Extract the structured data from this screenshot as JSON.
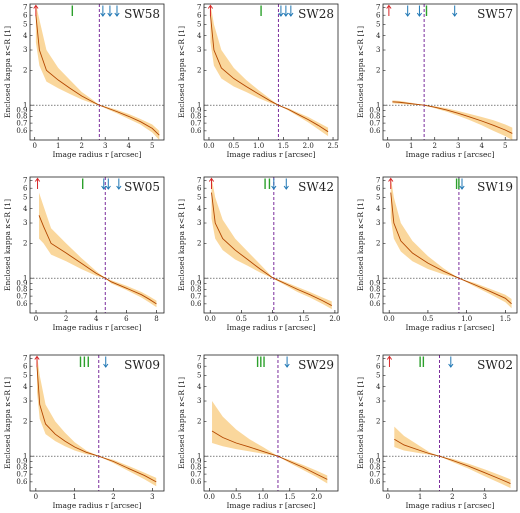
{
  "chart_data": [
    {
      "type": "line",
      "title": "SW58",
      "xlabel": "Image radius r [arcsec]",
      "ylabel": "Enclosed kappa κ<R [1]",
      "xlim": [
        -0.2,
        5.5
      ],
      "ylim": [
        0.5,
        7.5
      ],
      "yscale": "log",
      "xticks": [
        0,
        1,
        2,
        3,
        4,
        5
      ],
      "yticks": [
        0.6,
        0.7,
        0.8,
        0.9,
        1,
        2,
        3,
        4,
        5,
        6,
        7
      ],
      "ytick_labels": [
        "0.6",
        "0.7",
        "0.8",
        "0.9",
        "1",
        "2",
        "3",
        "4",
        "5",
        "6",
        "7"
      ],
      "reference_y": 1,
      "vline_x": 2.75,
      "markers": [
        {
          "x": 0.05,
          "color": "red"
        },
        {
          "x": 1.6,
          "color": "green"
        },
        {
          "x": 2.9,
          "color": "blue"
        },
        {
          "x": 3.2,
          "color": "blue"
        },
        {
          "x": 3.5,
          "color": "blue"
        }
      ],
      "series": [
        {
          "x": [
            0.05,
            0.2,
            0.5,
            1.0,
            1.5,
            2.0,
            2.5,
            2.75,
            3.0,
            3.5,
            4.0,
            4.5,
            5.0,
            5.3
          ],
          "y": [
            6.0,
            3.0,
            2.0,
            1.65,
            1.4,
            1.2,
            1.06,
            1.0,
            0.96,
            0.88,
            0.8,
            0.72,
            0.63,
            0.55
          ],
          "lower": [
            3.5,
            2.2,
            1.6,
            1.4,
            1.25,
            1.12,
            1.03,
            1.0,
            0.94,
            0.85,
            0.76,
            0.68,
            0.58,
            0.5
          ],
          "upper": [
            7.5,
            5.5,
            3.0,
            2.1,
            1.65,
            1.3,
            1.1,
            1.0,
            0.98,
            0.91,
            0.84,
            0.76,
            0.68,
            0.6
          ]
        }
      ]
    },
    {
      "type": "line",
      "title": "SW28",
      "xlabel": "Image radius r [arcsec]",
      "ylabel": "Enclosed kappa κ<R [1]",
      "xlim": [
        -0.1,
        2.6
      ],
      "ylim": [
        0.5,
        7.5
      ],
      "yscale": "log",
      "xticks": [
        0.0,
        0.5,
        1.0,
        1.5,
        2.0,
        2.5
      ],
      "xtick_labels": [
        "0.0",
        "0.5",
        "1.0",
        "1.5",
        "2.0",
        "2.5"
      ],
      "yticks": [
        0.6,
        0.7,
        0.8,
        0.9,
        1,
        2,
        3,
        4,
        5,
        6,
        7
      ],
      "ytick_labels": [
        "0.6",
        "0.7",
        "0.8",
        "0.9",
        "1",
        "2",
        "3",
        "4",
        "5",
        "6",
        "7"
      ],
      "reference_y": 1,
      "vline_x": 1.4,
      "markers": [
        {
          "x": 0.03,
          "color": "red"
        },
        {
          "x": 1.05,
          "color": "green"
        },
        {
          "x": 1.45,
          "color": "blue"
        },
        {
          "x": 1.55,
          "color": "blue"
        },
        {
          "x": 1.65,
          "color": "blue"
        }
      ],
      "series": [
        {
          "x": [
            0.03,
            0.1,
            0.25,
            0.5,
            0.75,
            1.0,
            1.25,
            1.4,
            1.6,
            1.8,
            2.0,
            2.2,
            2.4
          ],
          "y": [
            6.0,
            3.0,
            2.1,
            1.7,
            1.45,
            1.25,
            1.08,
            1.0,
            0.92,
            0.83,
            0.75,
            0.67,
            0.59
          ],
          "lower": [
            3.5,
            2.2,
            1.7,
            1.45,
            1.3,
            1.15,
            1.04,
            1.0,
            0.9,
            0.8,
            0.71,
            0.62,
            0.54
          ],
          "upper": [
            7.5,
            5.0,
            3.0,
            2.1,
            1.65,
            1.35,
            1.12,
            1.0,
            0.94,
            0.86,
            0.79,
            0.71,
            0.64
          ]
        }
      ]
    },
    {
      "type": "line",
      "title": "SW57",
      "xlabel": "Image radius r [arcsec]",
      "ylabel": "Enclosed kappa κ<R [1]",
      "xlim": [
        -0.2,
        5.5
      ],
      "ylim": [
        0.5,
        7.5
      ],
      "yscale": "log",
      "xticks": [
        0,
        1,
        2,
        3,
        4,
        5
      ],
      "yticks": [
        0.6,
        0.7,
        0.8,
        0.9,
        1,
        2,
        3,
        4,
        5,
        6,
        7
      ],
      "ytick_labels": [
        "0.6",
        "0.7",
        "0.8",
        "0.9",
        "1",
        "2",
        "3",
        "4",
        "5",
        "6",
        "7"
      ],
      "reference_y": 1,
      "vline_x": 1.55,
      "markers": [
        {
          "x": 0.05,
          "color": "red"
        },
        {
          "x": 0.85,
          "color": "blue"
        },
        {
          "x": 1.35,
          "color": "blue"
        },
        {
          "x": 1.65,
          "color": "green"
        },
        {
          "x": 2.85,
          "color": "blue"
        }
      ],
      "series": [
        {
          "x": [
            0.2,
            0.5,
            1.0,
            1.55,
            2.0,
            2.5,
            3.0,
            3.5,
            4.0,
            4.5,
            5.0,
            5.3
          ],
          "y": [
            1.07,
            1.06,
            1.03,
            1.0,
            0.96,
            0.91,
            0.85,
            0.79,
            0.73,
            0.67,
            0.61,
            0.57
          ],
          "lower": [
            1.04,
            1.03,
            1.01,
            1.0,
            0.94,
            0.88,
            0.81,
            0.74,
            0.67,
            0.6,
            0.54,
            0.5
          ],
          "upper": [
            1.1,
            1.09,
            1.05,
            1.0,
            0.98,
            0.94,
            0.89,
            0.84,
            0.79,
            0.74,
            0.68,
            0.64
          ]
        }
      ]
    },
    {
      "type": "line",
      "title": "SW05",
      "xlabel": "Image radius r [arcsec]",
      "ylabel": "Enclosed kappa κ<R [1]",
      "xlim": [
        -0.4,
        8.5
      ],
      "ylim": [
        0.5,
        7.5
      ],
      "yscale": "log",
      "xticks": [
        0,
        2,
        4,
        6,
        8
      ],
      "yticks": [
        0.6,
        0.7,
        0.8,
        0.9,
        1,
        2,
        3,
        4,
        5,
        6,
        7
      ],
      "ytick_labels": [
        "0.6",
        "0.7",
        "0.8",
        "0.9",
        "1",
        "2",
        "3",
        "4",
        "5",
        "6",
        "7"
      ],
      "reference_y": 1,
      "vline_x": 4.6,
      "markers": [
        {
          "x": 0.1,
          "color": "red"
        },
        {
          "x": 3.1,
          "color": "green"
        },
        {
          "x": 4.5,
          "color": "blue"
        },
        {
          "x": 4.8,
          "color": "blue"
        },
        {
          "x": 5.5,
          "color": "blue"
        }
      ],
      "series": [
        {
          "x": [
            0.2,
            0.5,
            1.0,
            2.0,
            3.0,
            4.0,
            4.6,
            5.0,
            6.0,
            7.0,
            7.5,
            8.0
          ],
          "y": [
            3.5,
            2.8,
            2.0,
            1.65,
            1.35,
            1.1,
            1.0,
            0.93,
            0.82,
            0.72,
            0.66,
            0.6
          ],
          "lower": [
            2.2,
            2.0,
            1.6,
            1.4,
            1.2,
            1.05,
            1.0,
            0.9,
            0.79,
            0.68,
            0.62,
            0.56
          ],
          "upper": [
            5.5,
            4.2,
            2.7,
            2.0,
            1.5,
            1.15,
            1.0,
            0.96,
            0.86,
            0.76,
            0.7,
            0.64
          ]
        }
      ]
    },
    {
      "type": "line",
      "title": "SW42",
      "xlabel": "Image radius r [arcsec]",
      "ylabel": "Enclosed kappa κ<R [1]",
      "xlim": [
        -0.1,
        2.05
      ],
      "ylim": [
        0.5,
        7.5
      ],
      "yscale": "log",
      "xticks": [
        0.0,
        0.5,
        1.0,
        1.5,
        2.0
      ],
      "xtick_labels": [
        "0.0",
        "0.5",
        "1.0",
        "1.5",
        "2.0"
      ],
      "yticks": [
        0.6,
        0.7,
        0.8,
        0.9,
        1,
        2,
        3,
        4,
        5,
        6,
        7
      ],
      "ytick_labels": [
        "0.6",
        "0.7",
        "0.8",
        "0.9",
        "1",
        "2",
        "3",
        "4",
        "5",
        "6",
        "7"
      ],
      "reference_y": 1,
      "vline_x": 1.02,
      "markers": [
        {
          "x": 0.02,
          "color": "red"
        },
        {
          "x": 0.88,
          "color": "green"
        },
        {
          "x": 0.95,
          "color": "green"
        },
        {
          "x": 1.02,
          "color": "blue"
        },
        {
          "x": 1.22,
          "color": "blue"
        }
      ],
      "series": [
        {
          "x": [
            0.02,
            0.08,
            0.2,
            0.4,
            0.6,
            0.8,
            1.0,
            1.2,
            1.4,
            1.6,
            1.8,
            1.95
          ],
          "y": [
            5.5,
            3.0,
            2.2,
            1.75,
            1.45,
            1.2,
            1.01,
            0.9,
            0.8,
            0.72,
            0.64,
            0.58
          ],
          "lower": [
            3.3,
            2.2,
            1.75,
            1.45,
            1.28,
            1.12,
            1.0,
            0.87,
            0.76,
            0.68,
            0.6,
            0.54
          ],
          "upper": [
            7.5,
            5.0,
            3.2,
            2.2,
            1.7,
            1.32,
            1.02,
            0.93,
            0.84,
            0.76,
            0.68,
            0.63
          ]
        }
      ]
    },
    {
      "type": "line",
      "title": "SW19",
      "xlabel": "Image radius r [arcsec]",
      "ylabel": "Enclosed kappa κ<R [1]",
      "xlim": [
        -0.08,
        1.65
      ],
      "ylim": [
        0.5,
        7.5
      ],
      "yscale": "log",
      "xticks": [
        0.0,
        0.5,
        1.0,
        1.5
      ],
      "xtick_labels": [
        "0.0",
        "0.5",
        "1.0",
        "1.5"
      ],
      "yticks": [
        0.6,
        0.7,
        0.8,
        0.9,
        1,
        2,
        3,
        4,
        5,
        6,
        7
      ],
      "ytick_labels": [
        "0.6",
        "0.7",
        "0.8",
        "0.9",
        "1",
        "2",
        "3",
        "4",
        "5",
        "6",
        "7"
      ],
      "reference_y": 1,
      "vline_x": 0.9,
      "markers": [
        {
          "x": 0.02,
          "color": "red"
        },
        {
          "x": 0.87,
          "color": "green"
        },
        {
          "x": 0.9,
          "color": "green"
        },
        {
          "x": 0.94,
          "color": "blue"
        }
      ],
      "series": [
        {
          "x": [
            0.02,
            0.06,
            0.15,
            0.3,
            0.5,
            0.7,
            0.9,
            1.1,
            1.3,
            1.5,
            1.58
          ],
          "y": [
            5.5,
            3.0,
            2.1,
            1.65,
            1.35,
            1.15,
            1.0,
            0.88,
            0.77,
            0.67,
            0.6
          ],
          "lower": [
            3.3,
            2.2,
            1.7,
            1.4,
            1.2,
            1.08,
            1.0,
            0.85,
            0.73,
            0.62,
            0.55
          ],
          "upper": [
            7.5,
            5.0,
            3.0,
            2.1,
            1.55,
            1.22,
            1.0,
            0.91,
            0.81,
            0.72,
            0.66
          ]
        }
      ]
    },
    {
      "type": "line",
      "title": "SW09",
      "xlabel": "Image radius r [arcsec]",
      "ylabel": "Enclosed kappa κ<R [1]",
      "xlim": [
        -0.15,
        3.3
      ],
      "ylim": [
        0.5,
        7.5
      ],
      "yscale": "log",
      "xticks": [
        0,
        1,
        2,
        3
      ],
      "yticks": [
        0.6,
        0.7,
        0.8,
        0.9,
        1,
        2,
        3,
        4,
        5,
        6,
        7
      ],
      "ytick_labels": [
        "0.6",
        "0.7",
        "0.8",
        "0.9",
        "1",
        "2",
        "3",
        "4",
        "5",
        "6",
        "7"
      ],
      "reference_y": 1,
      "vline_x": 1.62,
      "markers": [
        {
          "x": 0.03,
          "color": "red"
        },
        {
          "x": 1.15,
          "color": "green"
        },
        {
          "x": 1.25,
          "color": "green"
        },
        {
          "x": 1.35,
          "color": "green"
        },
        {
          "x": 1.8,
          "color": "blue"
        }
      ],
      "series": [
        {
          "x": [
            0.03,
            0.1,
            0.25,
            0.5,
            0.75,
            1.0,
            1.3,
            1.62,
            2.0,
            2.4,
            2.8,
            3.1
          ],
          "y": [
            6.0,
            2.8,
            1.9,
            1.55,
            1.35,
            1.2,
            1.08,
            1.0,
            0.9,
            0.78,
            0.68,
            0.6
          ],
          "lower": [
            3.6,
            2.1,
            1.55,
            1.35,
            1.22,
            1.12,
            1.04,
            1.0,
            0.87,
            0.74,
            0.63,
            0.55
          ],
          "upper": [
            7.5,
            5.0,
            2.8,
            2.0,
            1.6,
            1.32,
            1.12,
            1.0,
            0.93,
            0.82,
            0.72,
            0.65
          ]
        }
      ]
    },
    {
      "type": "line",
      "title": "SW29",
      "xlabel": "Image radius r [arcsec]",
      "ylabel": "Enclosed kappa κ<R [1]",
      "xlim": [
        -0.1,
        2.4
      ],
      "ylim": [
        0.5,
        7.5
      ],
      "yscale": "log",
      "xticks": [
        0.0,
        0.5,
        1.0,
        1.5,
        2.0
      ],
      "xtick_labels": [
        "0.0",
        "0.5",
        "1.0",
        "1.5",
        "2.0"
      ],
      "yticks": [
        0.6,
        0.7,
        0.8,
        0.9,
        1,
        2,
        3,
        4,
        5,
        6,
        7
      ],
      "ytick_labels": [
        "0.6",
        "0.7",
        "0.8",
        "0.9",
        "1",
        "2",
        "3",
        "4",
        "5",
        "6",
        "7"
      ],
      "reference_y": 1,
      "vline_x": 1.28,
      "markers": [
        {
          "x": 0.9,
          "color": "green"
        },
        {
          "x": 0.96,
          "color": "green"
        },
        {
          "x": 1.02,
          "color": "green"
        },
        {
          "x": 1.45,
          "color": "blue"
        }
      ],
      "series": [
        {
          "x": [
            0.05,
            0.25,
            0.5,
            0.75,
            1.0,
            1.28,
            1.5,
            1.75,
            2.0,
            2.2
          ],
          "y": [
            1.65,
            1.45,
            1.3,
            1.2,
            1.1,
            1.0,
            0.9,
            0.8,
            0.7,
            0.63
          ],
          "lower": [
            1.3,
            1.22,
            1.15,
            1.1,
            1.05,
            1.0,
            0.87,
            0.76,
            0.66,
            0.58
          ],
          "upper": [
            3.0,
            2.2,
            1.7,
            1.4,
            1.2,
            1.0,
            0.93,
            0.84,
            0.75,
            0.68
          ]
        }
      ]
    },
    {
      "type": "line",
      "title": "SW02",
      "xlabel": "Image radius r [arcsec]",
      "ylabel": "Enclosed kappa κ<R [1]",
      "xlim": [
        -0.15,
        4.0
      ],
      "ylim": [
        0.5,
        7.5
      ],
      "yscale": "log",
      "xticks": [
        0,
        1,
        2,
        3
      ],
      "yticks": [
        0.6,
        0.7,
        0.8,
        0.9,
        1,
        2,
        3,
        4,
        5,
        6,
        7
      ],
      "ytick_labels": [
        "0.6",
        "0.7",
        "0.8",
        "0.9",
        "1",
        "2",
        "3",
        "4",
        "5",
        "6",
        "7"
      ],
      "reference_y": 1,
      "vline_x": 1.6,
      "markers": [
        {
          "x": 0.05,
          "color": "red"
        },
        {
          "x": 1.0,
          "color": "green"
        },
        {
          "x": 1.1,
          "color": "green"
        },
        {
          "x": 1.95,
          "color": "blue"
        }
      ],
      "series": [
        {
          "x": [
            0.2,
            0.5,
            1.0,
            1.3,
            1.6,
            2.0,
            2.5,
            3.0,
            3.5,
            3.8
          ],
          "y": [
            1.4,
            1.25,
            1.12,
            1.05,
            1.0,
            0.92,
            0.82,
            0.72,
            0.63,
            0.58
          ],
          "lower": [
            1.2,
            1.12,
            1.06,
            1.03,
            1.0,
            0.89,
            0.78,
            0.67,
            0.58,
            0.53
          ],
          "upper": [
            1.8,
            1.5,
            1.22,
            1.08,
            1.0,
            0.95,
            0.86,
            0.77,
            0.68,
            0.63
          ]
        }
      ]
    }
  ]
}
